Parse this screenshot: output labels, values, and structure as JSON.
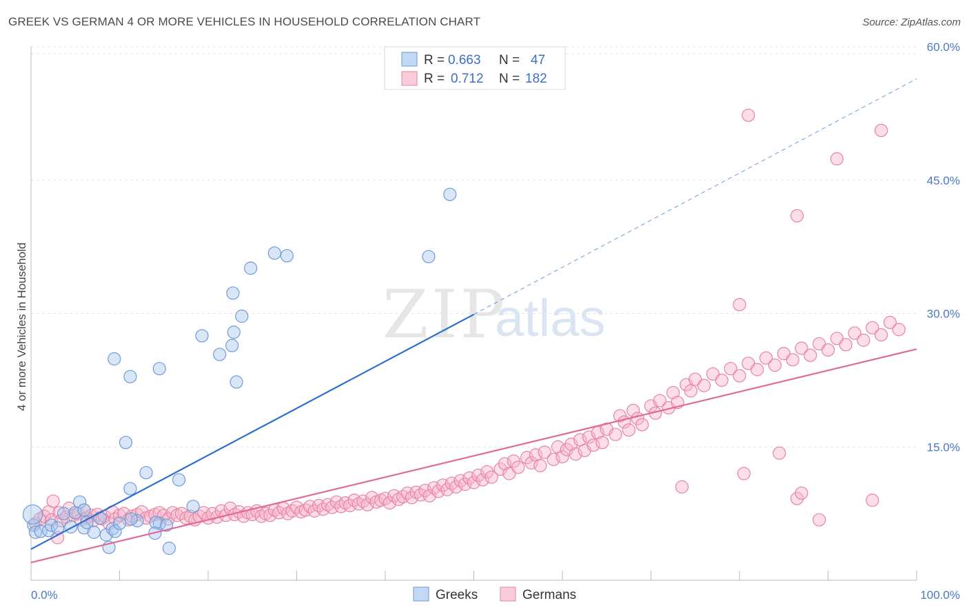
{
  "header": {
    "title": "GREEK VS GERMAN 4 OR MORE VEHICLES IN HOUSEHOLD CORRELATION CHART",
    "source": "Source: ZipAtlas.com"
  },
  "watermark": {
    "zip": "ZIP",
    "atlas": "atlas"
  },
  "legend": {
    "rows": [
      {
        "r_label": "R =",
        "r_value": "0.663",
        "n_label": "N =",
        "n_value": "47",
        "color": "#a9c8f0"
      },
      {
        "r_label": "R =",
        "r_value": "0.712",
        "n_label": "N =",
        "n_value": "182",
        "color": "#f6b6cb"
      }
    ]
  },
  "bottom_legend": {
    "items": [
      {
        "label": "Greeks",
        "color": "#a9c8f0"
      },
      {
        "label": "Germans",
        "color": "#f6b6cb"
      }
    ]
  },
  "colors": {
    "greeks_fill": "#a9c8f0",
    "greeks_stroke": "#6f9ad6",
    "greeks_line": "#2a6fcc",
    "germans_fill": "#f6b6cb",
    "germans_stroke": "#e7829f",
    "germans_line": "#e0689a",
    "grid": "#e3e3e3"
  },
  "chart_data": {
    "type": "scatter",
    "title": "GREEK VS GERMAN 4 OR MORE VEHICLES IN HOUSEHOLD CORRELATION CHART",
    "xlabel": "",
    "ylabel": "4 or more Vehicles in Household",
    "xlim": [
      0,
      100
    ],
    "ylim": [
      0,
      60
    ],
    "x_tick_labels": [
      "0.0%",
      "100.0%"
    ],
    "y_ticks": [
      15,
      30,
      45,
      60
    ],
    "y_tick_labels": [
      "15.0%",
      "30.0%",
      "45.0%",
      "60.0%"
    ],
    "grid": true,
    "legend_position": "top-center",
    "series": [
      {
        "name": "Greeks",
        "R": 0.663,
        "N": 47,
        "trend": {
          "x": [
            0,
            50
          ],
          "y": [
            3.5,
            29.9
          ],
          "extended_to": [
            100,
            56.4
          ]
        },
        "points": [
          [
            0.3,
            6.2
          ],
          [
            0.5,
            5.4
          ],
          [
            1.1,
            5.5
          ],
          [
            2.0,
            5.6
          ],
          [
            2.3,
            6.2
          ],
          [
            3.0,
            5.9
          ],
          [
            3.7,
            7.5
          ],
          [
            4.5,
            6.0
          ],
          [
            5.0,
            7.6
          ],
          [
            6.0,
            5.9
          ],
          [
            6.3,
            6.5
          ],
          [
            7.1,
            5.4
          ],
          [
            7.8,
            7.0
          ],
          [
            8.5,
            5.1
          ],
          [
            9.2,
            5.8
          ],
          [
            9.5,
            5.5
          ],
          [
            10.0,
            6.4
          ],
          [
            5.5,
            8.8
          ],
          [
            6.0,
            7.9
          ],
          [
            12.0,
            6.7
          ],
          [
            11.3,
            6.9
          ],
          [
            8.8,
            3.7
          ],
          [
            11.2,
            22.9
          ],
          [
            14.5,
            23.8
          ],
          [
            9.4,
            24.9
          ],
          [
            19.3,
            27.5
          ],
          [
            22.7,
            26.4
          ],
          [
            22.8,
            32.3
          ],
          [
            23.8,
            29.7
          ],
          [
            21.3,
            25.4
          ],
          [
            23.2,
            22.3
          ],
          [
            14.5,
            6.4
          ],
          [
            14.1,
            6.5
          ],
          [
            15.6,
            3.6
          ],
          [
            15.3,
            6.2
          ],
          [
            14.0,
            5.3
          ],
          [
            27.5,
            36.8
          ],
          [
            28.9,
            36.5
          ],
          [
            22.9,
            27.9
          ],
          [
            24.8,
            35.1
          ],
          [
            44.9,
            36.4
          ],
          [
            47.3,
            43.4
          ],
          [
            18.3,
            8.3
          ],
          [
            13.0,
            12.1
          ],
          [
            10.7,
            15.5
          ],
          [
            11.2,
            10.3
          ],
          [
            16.7,
            11.3
          ]
        ]
      },
      {
        "name": "Germans",
        "R": 0.712,
        "N": 182,
        "trend": {
          "x": [
            0,
            100
          ],
          "y": [
            2.0,
            26.0
          ]
        },
        "points": [
          [
            0.5,
            6.4
          ],
          [
            1.0,
            6.9
          ],
          [
            1.5,
            7.2
          ],
          [
            2.0,
            7.7
          ],
          [
            2.3,
            6.8
          ],
          [
            2.5,
            8.9
          ],
          [
            3.0,
            4.8
          ],
          [
            3.2,
            7.6
          ],
          [
            3.4,
            6.7
          ],
          [
            4.0,
            7.1
          ],
          [
            4.3,
            8.1
          ],
          [
            4.8,
            7.3
          ],
          [
            5.3,
            7.5
          ],
          [
            5.6,
            6.8
          ],
          [
            6.0,
            7.9
          ],
          [
            6.3,
            7.0
          ],
          [
            6.8,
            7.3
          ],
          [
            7.0,
            6.7
          ],
          [
            7.5,
            7.4
          ],
          [
            8.0,
            6.9
          ],
          [
            8.3,
            7.2
          ],
          [
            8.8,
            6.4
          ],
          [
            9.2,
            7.7
          ],
          [
            9.5,
            6.9
          ],
          [
            10.0,
            7.3
          ],
          [
            10.5,
            7.5
          ],
          [
            11.0,
            6.8
          ],
          [
            11.4,
            7.2
          ],
          [
            12.0,
            7.4
          ],
          [
            12.5,
            7.7
          ],
          [
            13.0,
            7.0
          ],
          [
            13.5,
            7.2
          ],
          [
            14.0,
            7.4
          ],
          [
            14.5,
            7.6
          ],
          [
            15.0,
            7.3
          ],
          [
            15.5,
            6.9
          ],
          [
            16.0,
            7.6
          ],
          [
            16.5,
            7.3
          ],
          [
            17.0,
            7.5
          ],
          [
            17.5,
            7.0
          ],
          [
            18.0,
            7.2
          ],
          [
            18.5,
            6.8
          ],
          [
            19.0,
            7.2
          ],
          [
            19.5,
            7.6
          ],
          [
            20.0,
            7.0
          ],
          [
            20.5,
            7.5
          ],
          [
            21.0,
            7.1
          ],
          [
            21.5,
            7.8
          ],
          [
            22.0,
            7.3
          ],
          [
            22.5,
            8.1
          ],
          [
            23.0,
            7.4
          ],
          [
            23.5,
            7.7
          ],
          [
            24.0,
            7.2
          ],
          [
            24.5,
            7.6
          ],
          [
            25.0,
            7.4
          ],
          [
            25.5,
            7.8
          ],
          [
            26.0,
            7.2
          ],
          [
            26.5,
            7.5
          ],
          [
            27.0,
            7.3
          ],
          [
            27.5,
            7.9
          ],
          [
            28.0,
            7.6
          ],
          [
            28.5,
            8.1
          ],
          [
            29.0,
            7.5
          ],
          [
            29.5,
            7.8
          ],
          [
            30.0,
            8.2
          ],
          [
            30.5,
            7.7
          ],
          [
            31.0,
            7.9
          ],
          [
            31.5,
            8.3
          ],
          [
            32.0,
            7.8
          ],
          [
            32.5,
            8.4
          ],
          [
            33.0,
            8.0
          ],
          [
            33.5,
            8.5
          ],
          [
            34.0,
            8.2
          ],
          [
            34.5,
            8.8
          ],
          [
            35.0,
            8.3
          ],
          [
            35.5,
            8.7
          ],
          [
            36.0,
            8.4
          ],
          [
            36.5,
            9.0
          ],
          [
            37.0,
            8.6
          ],
          [
            37.5,
            8.9
          ],
          [
            38.0,
            8.5
          ],
          [
            38.5,
            9.3
          ],
          [
            39.0,
            8.8
          ],
          [
            39.5,
            9.0
          ],
          [
            40.0,
            9.2
          ],
          [
            40.5,
            8.7
          ],
          [
            41.0,
            9.5
          ],
          [
            41.5,
            9.1
          ],
          [
            42.0,
            9.4
          ],
          [
            42.5,
            9.8
          ],
          [
            43.0,
            9.3
          ],
          [
            43.5,
            9.9
          ],
          [
            44.0,
            9.6
          ],
          [
            44.5,
            10.1
          ],
          [
            45.0,
            9.5
          ],
          [
            45.5,
            10.4
          ],
          [
            46.0,
            10.0
          ],
          [
            46.5,
            10.7
          ],
          [
            47.0,
            10.2
          ],
          [
            47.5,
            10.9
          ],
          [
            48.0,
            10.5
          ],
          [
            48.5,
            11.2
          ],
          [
            49.0,
            10.8
          ],
          [
            49.5,
            11.5
          ],
          [
            50.0,
            11.0
          ],
          [
            50.5,
            11.8
          ],
          [
            51.0,
            11.3
          ],
          [
            51.5,
            12.2
          ],
          [
            52.0,
            11.6
          ],
          [
            53.0,
            12.5
          ],
          [
            53.5,
            13.1
          ],
          [
            54.0,
            12.0
          ],
          [
            54.5,
            13.4
          ],
          [
            55.0,
            12.7
          ],
          [
            56.0,
            13.8
          ],
          [
            56.5,
            13.2
          ],
          [
            57.0,
            14.1
          ],
          [
            57.5,
            12.9
          ],
          [
            58.0,
            14.4
          ],
          [
            59.0,
            13.6
          ],
          [
            59.5,
            15.0
          ],
          [
            60.0,
            13.9
          ],
          [
            60.5,
            14.7
          ],
          [
            61.0,
            15.3
          ],
          [
            61.5,
            14.2
          ],
          [
            62.0,
            15.8
          ],
          [
            62.5,
            14.6
          ],
          [
            63.0,
            16.1
          ],
          [
            63.5,
            15.2
          ],
          [
            64.0,
            16.6
          ],
          [
            64.5,
            15.5
          ],
          [
            65.0,
            17.0
          ],
          [
            66.0,
            16.4
          ],
          [
            66.5,
            18.5
          ],
          [
            67.0,
            17.8
          ],
          [
            67.5,
            16.9
          ],
          [
            68.0,
            19.1
          ],
          [
            68.5,
            18.2
          ],
          [
            69.0,
            17.5
          ],
          [
            70.0,
            19.6
          ],
          [
            70.5,
            18.8
          ],
          [
            71.0,
            20.2
          ],
          [
            72.0,
            19.4
          ],
          [
            72.5,
            21.1
          ],
          [
            73.0,
            20.0
          ],
          [
            74.0,
            22.0
          ],
          [
            74.5,
            21.3
          ],
          [
            75.0,
            22.6
          ],
          [
            76.0,
            21.9
          ],
          [
            77.0,
            23.2
          ],
          [
            78.0,
            22.5
          ],
          [
            79.0,
            23.8
          ],
          [
            80.0,
            23.0
          ],
          [
            81.0,
            24.4
          ],
          [
            82.0,
            23.7
          ],
          [
            83.0,
            25.0
          ],
          [
            84.0,
            24.2
          ],
          [
            85.0,
            25.5
          ],
          [
            86.0,
            24.8
          ],
          [
            87.0,
            26.1
          ],
          [
            88.0,
            25.3
          ],
          [
            89.0,
            26.6
          ],
          [
            90.0,
            25.9
          ],
          [
            91.0,
            27.2
          ],
          [
            92.0,
            26.5
          ],
          [
            93.0,
            27.8
          ],
          [
            94.0,
            27.0
          ],
          [
            95.0,
            28.4
          ],
          [
            96.0,
            27.6
          ],
          [
            97.0,
            29.0
          ],
          [
            98.0,
            28.2
          ],
          [
            86.5,
            9.2
          ],
          [
            87.0,
            9.8
          ],
          [
            89.0,
            6.8
          ],
          [
            95.0,
            9.0
          ],
          [
            73.5,
            10.5
          ],
          [
            80.5,
            12.0
          ],
          [
            84.5,
            14.3
          ],
          [
            91.0,
            47.4
          ],
          [
            96.0,
            50.6
          ],
          [
            81.0,
            52.3
          ],
          [
            80.0,
            31.0
          ],
          [
            86.5,
            41.0
          ]
        ]
      }
    ]
  }
}
